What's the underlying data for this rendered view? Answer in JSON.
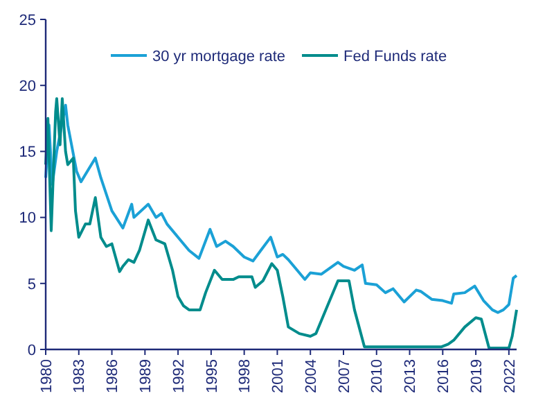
{
  "chart_data": {
    "type": "line",
    "xlim": [
      1980,
      2022.7
    ],
    "xticks": [
      1980,
      1983,
      1986,
      1989,
      1992,
      1995,
      1998,
      2001,
      2004,
      2007,
      2010,
      2013,
      2016,
      2019,
      2022
    ],
    "ylim": [
      0,
      25
    ],
    "yticks": [
      0,
      5,
      10,
      15,
      20,
      25
    ],
    "legend": "top",
    "grid": false,
    "series": [
      {
        "name": "30 yr mortgage rate",
        "color": "#1ba1d6",
        "x": [
          1980,
          1980.3,
          1980.6,
          1981,
          1981.8,
          1982,
          1982.8,
          1983.2,
          1984.5,
          1985,
          1986,
          1987,
          1987.8,
          1988,
          1989.3,
          1990,
          1990.5,
          1991,
          1992,
          1993,
          1993.9,
          1994.9,
          1995.5,
          1996.3,
          1997,
          1998,
          1998.8,
          1999.5,
          2000.4,
          2001,
          2001.5,
          2002,
          2003.5,
          2004,
          2005,
          2006.5,
          2007,
          2008,
          2008.7,
          2009,
          2010,
          2010.8,
          2011.5,
          2012.5,
          2013.6,
          2014,
          2015,
          2016,
          2016.8,
          2017,
          2018,
          2018.9,
          2019.7,
          2020.5,
          2021,
          2021.5,
          2022,
          2022.4,
          2022.7
        ],
        "values": [
          13,
          17,
          12.5,
          15,
          18.5,
          17,
          13.5,
          12.7,
          14.5,
          13,
          10.5,
          9.2,
          11,
          10,
          11,
          10,
          10.3,
          9.5,
          8.5,
          7.5,
          6.9,
          9.1,
          7.8,
          8.2,
          7.8,
          7,
          6.7,
          7.5,
          8.5,
          7,
          7.2,
          6.8,
          5.3,
          5.8,
          5.7,
          6.6,
          6.3,
          6,
          6.4,
          5,
          4.9,
          4.3,
          4.6,
          3.6,
          4.5,
          4.4,
          3.8,
          3.7,
          3.5,
          4.2,
          4.3,
          4.8,
          3.7,
          3,
          2.8,
          3,
          3.4,
          5.4,
          5.6
        ]
      },
      {
        "name": "Fed Funds rate",
        "color": "#008c8c",
        "x": [
          1980,
          1980.2,
          1980.5,
          1980.9,
          1981,
          1981.3,
          1981.5,
          1981.8,
          1982,
          1982.5,
          1982.7,
          1983,
          1983.6,
          1984,
          1984.5,
          1985,
          1985.5,
          1986,
          1986.7,
          1987,
          1987.5,
          1988,
          1988.5,
          1989.3,
          1990,
          1990.8,
          1991.5,
          1992,
          1992.5,
          1993,
          1994,
          1994.5,
          1995.3,
          1996,
          1997,
          1997.5,
          1998.7,
          1999,
          1999.7,
          2000.5,
          2001,
          2001.5,
          2002,
          2003,
          2004,
          2004.5,
          2005.5,
          2006.5,
          2007.5,
          2008,
          2008.9,
          2010,
          2015.9,
          2016.5,
          2017,
          2018,
          2019,
          2019.5,
          2020.2,
          2022,
          2022.3,
          2022.7
        ],
        "values": [
          14,
          17.5,
          9,
          18,
          19,
          15.5,
          19,
          15,
          14,
          14.5,
          10.5,
          8.5,
          9.5,
          9.5,
          11.5,
          8.5,
          7.8,
          8,
          5.9,
          6.3,
          6.8,
          6.6,
          7.5,
          9.8,
          8.3,
          8,
          6,
          4,
          3.3,
          3,
          3,
          4.3,
          6,
          5.3,
          5.3,
          5.5,
          5.5,
          4.7,
          5.2,
          6.5,
          6,
          4,
          1.7,
          1.2,
          1,
          1.2,
          3.2,
          5.2,
          5.2,
          3,
          0.2,
          0.2,
          0.2,
          0.4,
          0.7,
          1.7,
          2.4,
          2.3,
          0.1,
          0.1,
          1,
          3
        ]
      }
    ]
  }
}
